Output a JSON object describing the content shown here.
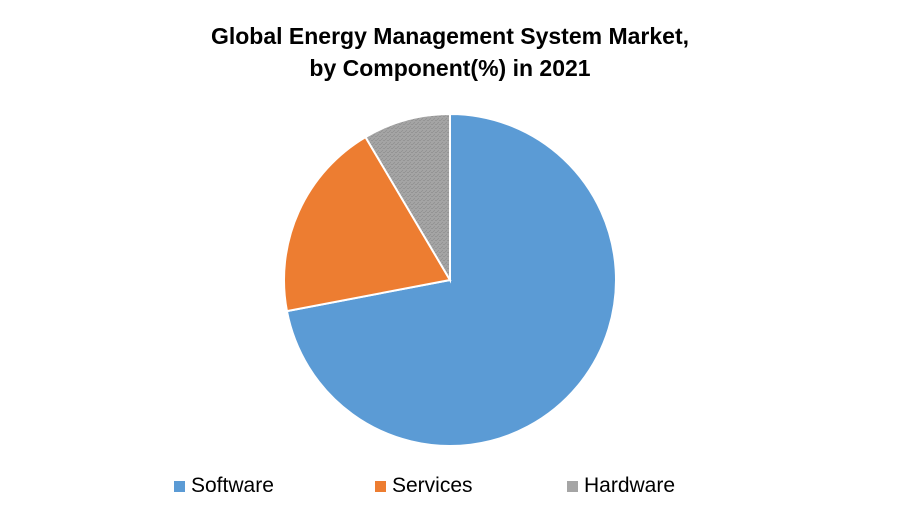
{
  "chart_data": {
    "type": "pie",
    "title": "Global Energy Management System Market, by Component(%) in 2021",
    "title_lines": [
      "Global Energy Management System Market,",
      "by Component(%) in 2021"
    ],
    "categories": [
      "Software",
      "Services",
      "Hardware"
    ],
    "values": [
      72,
      19.5,
      8.5
    ],
    "colors": [
      "#5B9BD5",
      "#ED7D31",
      "#A5A5A5"
    ],
    "start_angle_deg": 0,
    "direction": "clockwise",
    "legend_position": "bottom",
    "data_labels": false
  }
}
